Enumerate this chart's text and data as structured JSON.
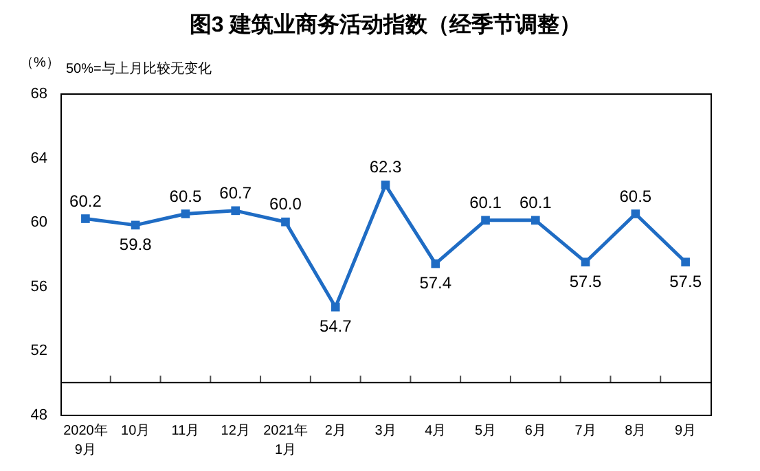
{
  "chart_data": {
    "type": "line",
    "title": "图3  建筑业商务活动指数（经季节调整）",
    "ylabel": "（%）",
    "annotations": [
      "50%=与上月比较无变化"
    ],
    "categories": [
      "2020年\n9月",
      "10月",
      "11月",
      "12月",
      "2021年\n1月",
      "2月",
      "3月",
      "4月",
      "5月",
      "6月",
      "7月",
      "8月",
      "9月"
    ],
    "series": [
      {
        "color": "#1f6cc4",
        "values": [
          60.2,
          59.8,
          60.5,
          60.7,
          60.0,
          54.7,
          62.3,
          57.4,
          60.1,
          60.1,
          57.5,
          60.5,
          57.5
        ],
        "value_labels": [
          "60.2",
          "59.8",
          "60.5",
          "60.7",
          "60.0",
          "54.7",
          "62.3",
          "57.4",
          "60.1",
          "60.1",
          "57.5",
          "60.5",
          "57.5"
        ]
      }
    ],
    "ylim": [
      48,
      68
    ],
    "yticks": [
      48,
      52,
      56,
      60,
      64,
      68
    ],
    "ref_lines": [
      {
        "axis": "y",
        "value": 50
      }
    ],
    "marker": "square",
    "line_style": "solid"
  }
}
